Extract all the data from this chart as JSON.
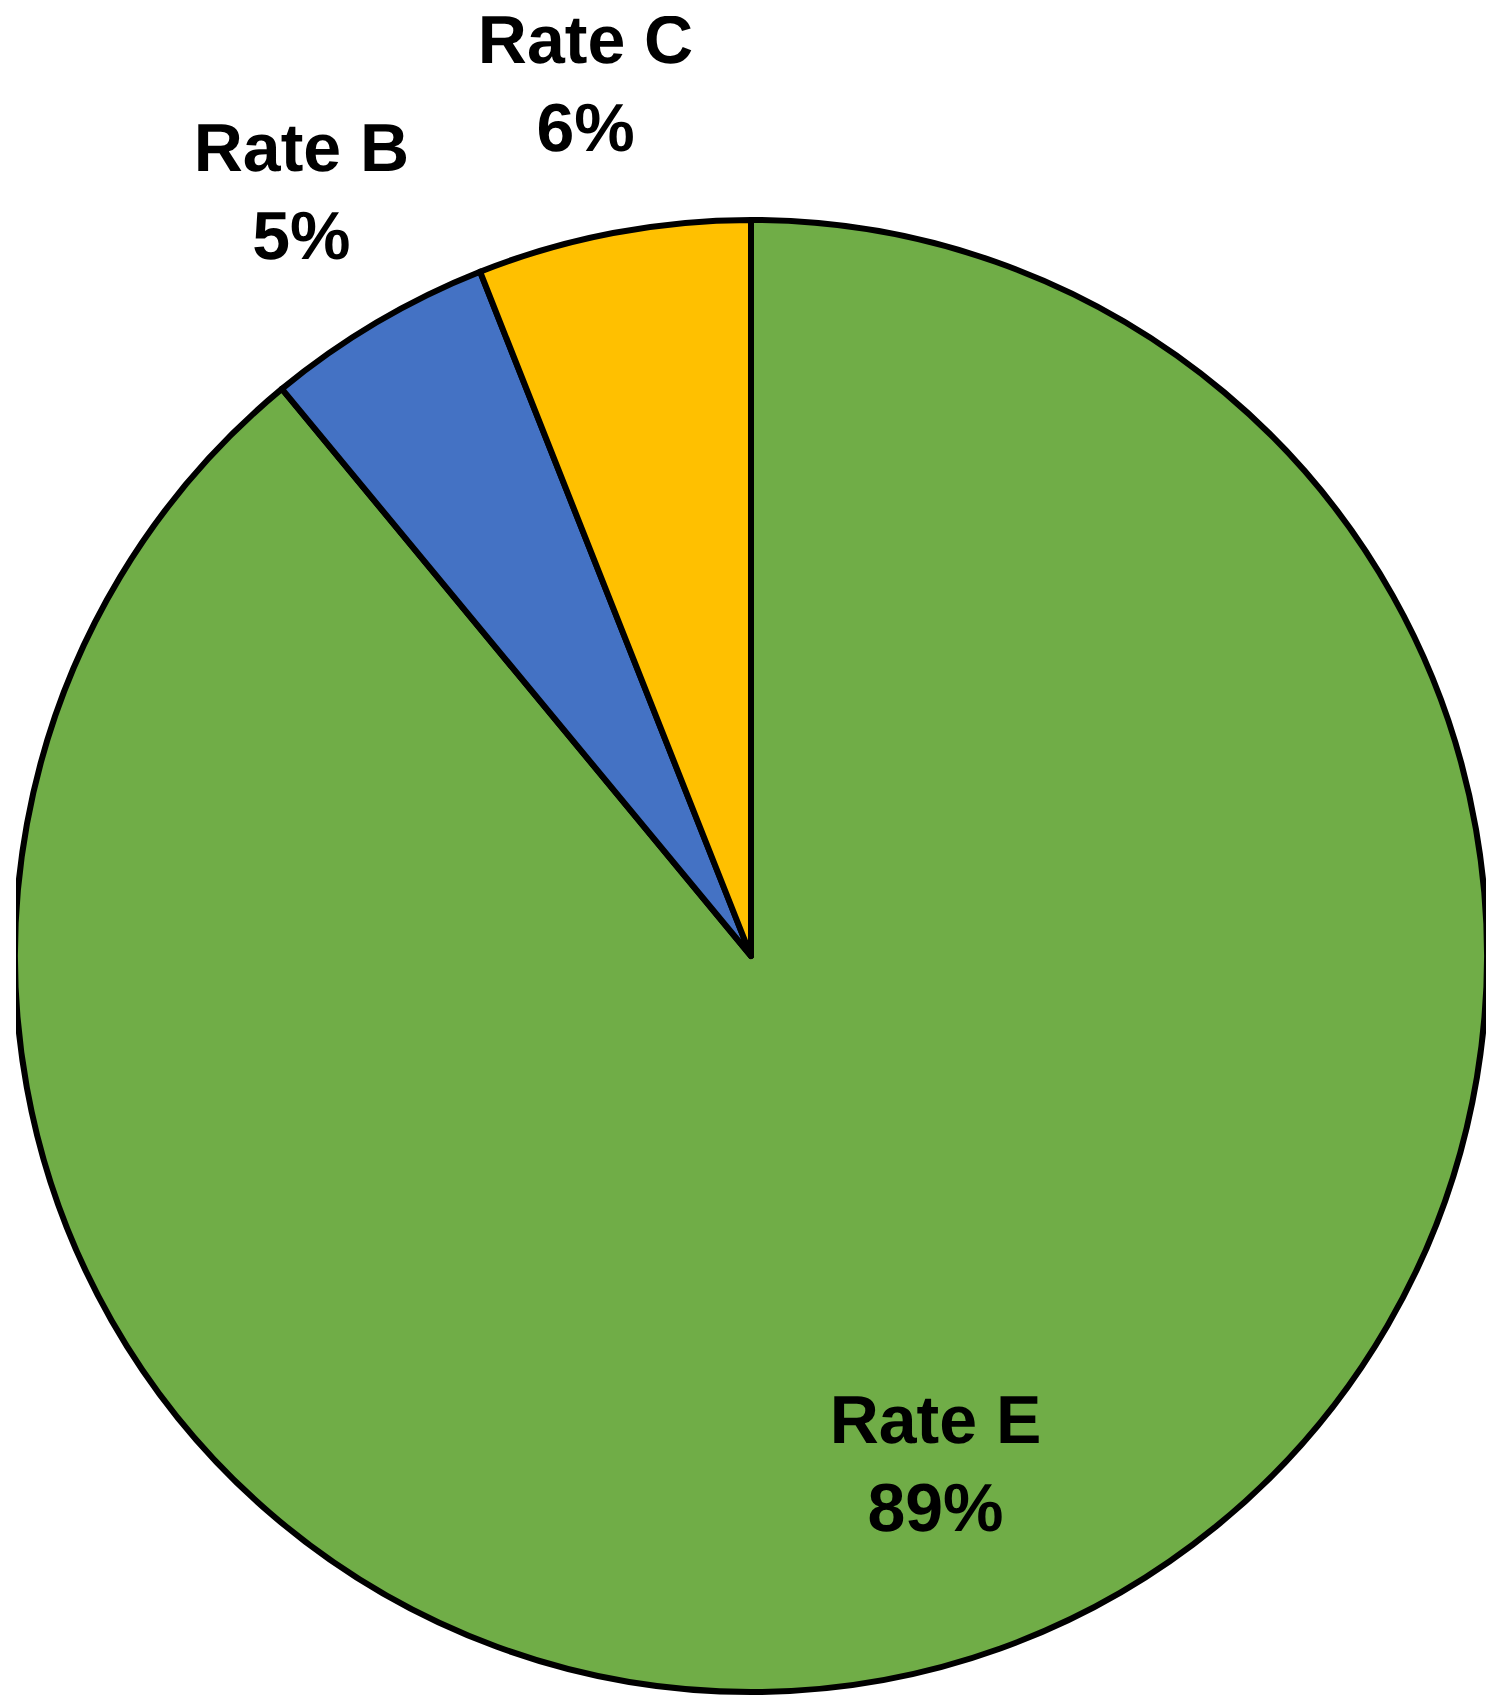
{
  "chart_data": {
    "type": "pie",
    "categories": [
      "Rate E",
      "Rate B",
      "Rate C"
    ],
    "values": [
      89,
      5,
      6
    ],
    "colors": [
      "#70ad47",
      "#4472c4",
      "#ffc000"
    ],
    "value_labels": [
      "89%",
      "5%",
      "6%"
    ],
    "legend": false
  }
}
